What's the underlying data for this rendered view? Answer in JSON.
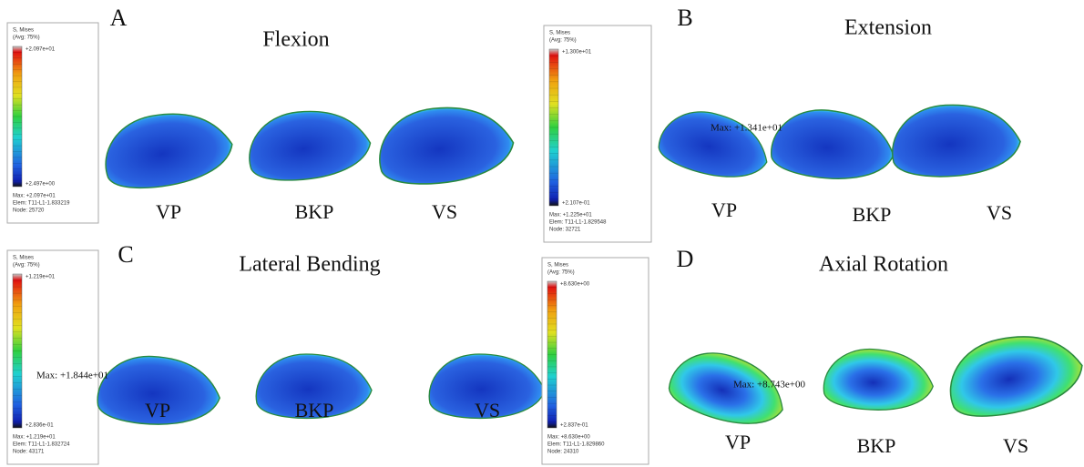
{
  "panels": [
    {
      "letter": "A",
      "title": "Flexion",
      "labels": [
        "VP",
        "BKP",
        "VS"
      ],
      "legend": {
        "title": "S, Mises",
        "avg": "(Avg: 75%)",
        "top": "+2.097e+01",
        "bottom": "+2.497e+00",
        "max": "Max: +2.097e+01",
        "elem": "Elem: T11-L1-1.833219",
        "node": "Node: 25720"
      }
    },
    {
      "letter": "B",
      "title": "Extension",
      "labels": [
        "VP",
        "BKP",
        "VS"
      ],
      "annotation": "Max: +1.341e+01",
      "legend": {
        "title": "S, Mises",
        "avg": "(Avg: 75%)",
        "top": "+1.300e+01",
        "bottom": "+2.107e-01",
        "max": "Max: +1.225e+01",
        "elem": "Elem: T11-L1-1.829548",
        "node": "Node: 32721"
      }
    },
    {
      "letter": "C",
      "title": "Lateral Bending",
      "labels": [
        "VP",
        "BKP",
        "VS"
      ],
      "annotation": "Max: +1.844e+01",
      "legend": {
        "title": "S, Mises",
        "avg": "(Avg: 75%)",
        "top": "+1.219e+01",
        "bottom": "+2.836e-01",
        "max": "Max: +1.219e+01",
        "elem": "Elem: T11-L1-1.832724",
        "node": "Node: 43171"
      }
    },
    {
      "letter": "D",
      "title": "Axial Rotation",
      "labels": [
        "VP",
        "BKP",
        "VS"
      ],
      "annotation": "Max: +8.743e+00",
      "legend": {
        "title": "S, Mises",
        "avg": "(Avg: 75%)",
        "top": "+8.630e+00",
        "bottom": "+2.837e-01",
        "max": "Max: +8.630e+00",
        "elem": "Elem: T11-L1-1.829860",
        "node": "Node: 24310"
      }
    }
  ]
}
